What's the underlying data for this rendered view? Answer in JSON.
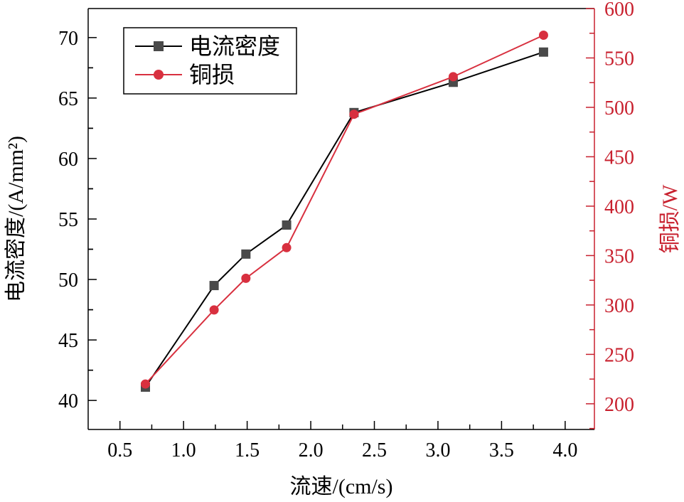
{
  "chart_data": {
    "type": "line",
    "xlabel": "流速/(cm/s)",
    "ylabel_left": "电流密度/(A/mm²)",
    "ylabel_right": "铜损/W",
    "xlim": [
      0.25,
      4.23
    ],
    "ylim_left": [
      37.6,
      72.4
    ],
    "ylim_right": [
      174,
      600
    ],
    "x_ticks": [
      0.5,
      1.0,
      1.5,
      2.0,
      2.5,
      3.0,
      3.5,
      4.0
    ],
    "x_tick_labels": [
      "0.5",
      "1.0",
      "1.5",
      "2.0",
      "2.5",
      "3.0",
      "3.5",
      "4.0"
    ],
    "y_left_ticks": [
      40,
      45,
      50,
      55,
      60,
      65,
      70
    ],
    "y_left_tick_labels": [
      "40",
      "45",
      "50",
      "55",
      "60",
      "65",
      "70"
    ],
    "y_right_ticks": [
      200,
      250,
      300,
      350,
      400,
      450,
      500,
      550,
      600
    ],
    "y_right_tick_labels": [
      "200",
      "250",
      "300",
      "350",
      "400",
      "450",
      "500",
      "550",
      "600"
    ],
    "grid": false,
    "legend_position": "top-left",
    "series": [
      {
        "name": "电流密度",
        "axis": "left",
        "marker": "square",
        "color": "#000000",
        "marker_color": "#4a4a4a",
        "x": [
          0.7,
          1.24,
          1.49,
          1.81,
          2.34,
          3.12,
          3.83
        ],
        "y": [
          41.1,
          49.5,
          52.1,
          54.5,
          63.8,
          66.3,
          68.8
        ]
      },
      {
        "name": "铜损",
        "axis": "right",
        "marker": "circle",
        "color": "#d8303f",
        "marker_color": "#d8303f",
        "x": [
          0.7,
          1.24,
          1.49,
          1.81,
          2.34,
          3.12,
          3.83
        ],
        "y": [
          220,
          295,
          327,
          358,
          493,
          531,
          573
        ]
      }
    ],
    "right_axis_color": "#c8202e"
  }
}
